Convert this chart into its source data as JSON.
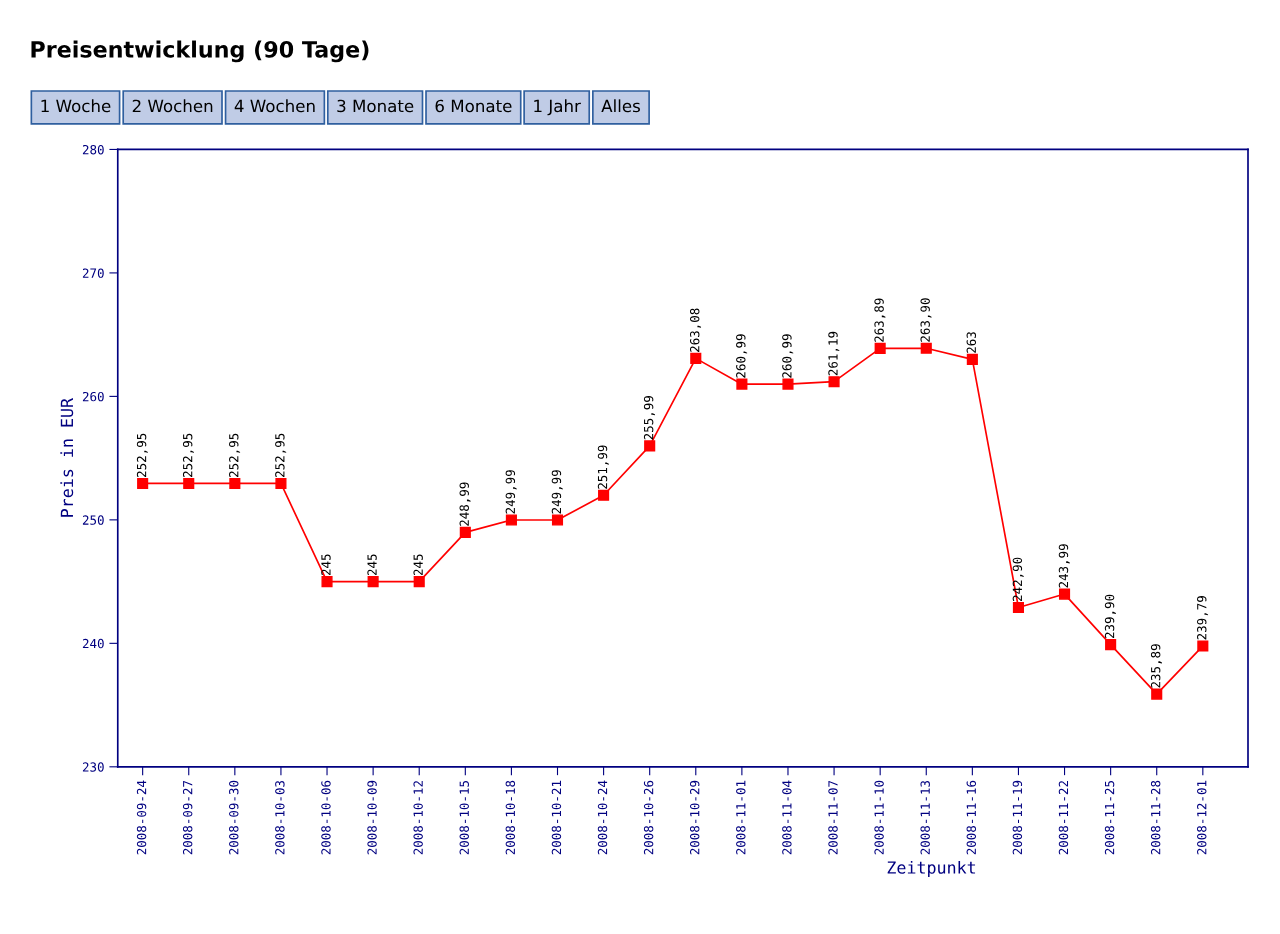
{
  "chart_data": {
    "type": "line",
    "title": "Preisentwicklung (90 Tage)",
    "xlabel": "Zeitpunkt",
    "ylabel": "Preis in EUR",
    "annotations": [
      "1 Woche",
      "2 Wochen",
      "4 Wochen",
      "3 Monate",
      "6 Monate",
      "1 Jahr",
      "Alles"
    ],
    "categories": [
      "2008-09-24",
      "2008-09-27",
      "2008-09-30",
      "2008-10-03",
      "2008-10-06",
      "2008-10-09",
      "2008-10-12",
      "2008-10-15",
      "2008-10-18",
      "2008-10-21",
      "2008-10-24",
      "2008-10-26",
      "2008-10-29",
      "2008-11-01",
      "2008-11-04",
      "2008-11-07",
      "2008-11-10",
      "2008-11-13",
      "2008-11-16",
      "2008-11-19",
      "2008-11-22",
      "2008-11-25",
      "2008-11-28",
      "2008-12-01"
    ],
    "series": [
      {
        "color": "#ff0000",
        "values": [
          252.95,
          252.95,
          252.95,
          252.95,
          245,
          245,
          245,
          248.99,
          249.99,
          249.99,
          251.99,
          255.99,
          263.08,
          260.99,
          260.99,
          261.19,
          263.89,
          263.9,
          263,
          242.9,
          243.99,
          239.9,
          235.89,
          239.79
        ],
        "value_labels": [
          "252,95",
          "252,95",
          "252,95",
          "252,95",
          "245",
          "245",
          "245",
          "248,99",
          "249,99",
          "249,99",
          "251,99",
          "255,99",
          "263,08",
          "260,99",
          "260,99",
          "261,19",
          "263,89",
          "263,90",
          "263",
          "242,90",
          "243,99",
          "239,90",
          "235,89",
          "239,79"
        ]
      }
    ],
    "ylim": [
      230,
      280
    ],
    "yticks": [
      230,
      240,
      250,
      260,
      270,
      280
    ],
    "grid": false,
    "marker": "square",
    "line_style": "solid"
  }
}
